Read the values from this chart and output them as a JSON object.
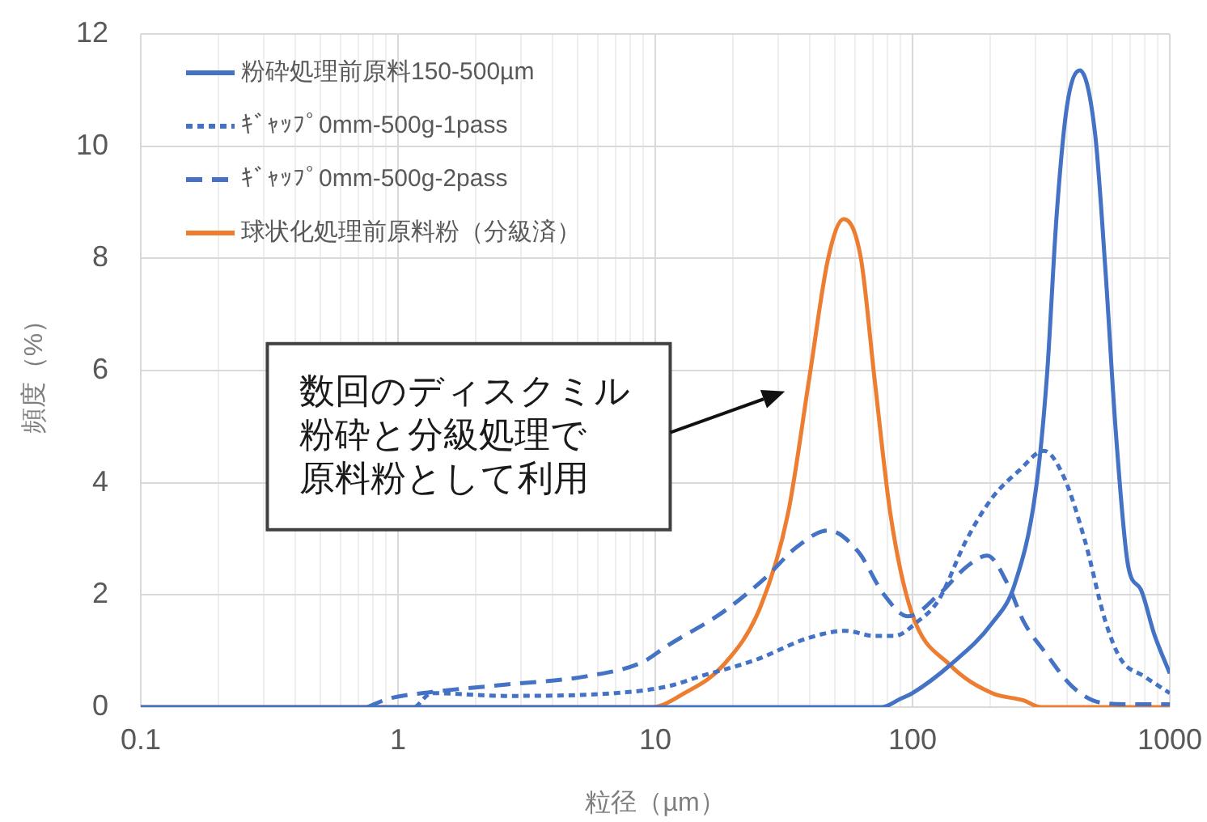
{
  "chart_data": {
    "type": "line",
    "xlabel": "粒径（µm）",
    "ylabel": "頻度（%）",
    "log": "x",
    "grid": true,
    "legend": "top left",
    "marker": "none",
    "xlim": [
      0.1,
      1000
    ],
    "xticks": [
      0.1,
      {
        "value": 0.2,
        "label": null
      },
      {
        "value": 0.3,
        "label": null
      },
      {
        "value": 0.4,
        "label": null
      },
      {
        "value": 0.5,
        "label": null
      },
      {
        "value": 0.6,
        "label": null
      },
      {
        "value": 0.7,
        "label": null
      },
      {
        "value": 0.8,
        "label": null
      },
      {
        "value": 0.9,
        "label": null
      },
      1,
      {
        "value": 2,
        "label": null
      },
      {
        "value": 3,
        "label": null
      },
      {
        "value": 4,
        "label": null
      },
      {
        "value": 5,
        "label": null
      },
      {
        "value": 6,
        "label": null
      },
      {
        "value": 7,
        "label": null
      },
      {
        "value": 8,
        "label": null
      },
      {
        "value": 9,
        "label": null
      },
      10,
      {
        "value": 20,
        "label": null
      },
      {
        "value": 30,
        "label": null
      },
      {
        "value": 40,
        "label": null
      },
      {
        "value": 50,
        "label": null
      },
      {
        "value": 60,
        "label": null
      },
      {
        "value": 70,
        "label": null
      },
      {
        "value": 80,
        "label": null
      },
      {
        "value": 90,
        "label": null
      },
      100,
      {
        "value": 200,
        "label": null
      },
      {
        "value": 300,
        "label": null
      },
      {
        "value": 400,
        "label": null
      },
      {
        "value": 500,
        "label": null
      },
      {
        "value": 600,
        "label": null
      },
      {
        "value": 700,
        "label": null
      },
      {
        "value": 800,
        "label": null
      },
      {
        "value": 900,
        "label": null
      },
      1000
    ],
    "ylim": [
      0,
      12
    ],
    "yticks": [
      0,
      2,
      4,
      6,
      8,
      10,
      12
    ],
    "series": [
      {
        "name": "粉砕処理前原料150-500µm",
        "color": "#4472c4",
        "line_style": "solid",
        "x": [
          0.1,
          76,
          90,
          100,
          140,
          204,
          250,
          302,
          333,
          363,
          398,
          447,
          513,
          562,
          617,
          690,
          771,
          870,
          1000
        ],
        "values": [
          0,
          0,
          0.15,
          0.25,
          0.75,
          1.5,
          2.2,
          3.9,
          5.9,
          8.75,
          10.7,
          11.35,
          10.2,
          7.8,
          4.9,
          2.5,
          2.1,
          1.3,
          0.6
        ]
      },
      {
        "name": "ｷﾞｬｯﾌﾟ0mm-500g-1pass",
        "color": "#4472c4",
        "line_style": "dotted",
        "x": [
          1.17,
          1.36,
          2.6,
          7,
          11.2,
          15,
          24.5,
          39.8,
          55,
          71,
          85,
          105,
          126,
          162,
          204,
          260,
          324,
          385,
          467,
          562,
          646,
          794,
          1000
        ],
        "values": [
          0,
          0.25,
          0.2,
          0.25,
          0.37,
          0.55,
          0.84,
          1.24,
          1.36,
          1.27,
          1.27,
          1.53,
          1.9,
          2.98,
          3.73,
          4.22,
          4.57,
          4.13,
          2.98,
          1.53,
          0.85,
          0.55,
          0.25
        ]
      },
      {
        "name": "ｷﾞｬｯﾌﾟ0mm-500g-2pass",
        "color": "#4472c4",
        "line_style": "dashed",
        "x": [
          0.76,
          0.92,
          1.36,
          2.6,
          5.4,
          8.9,
          11.2,
          18.4,
          26.7,
          35.6,
          47,
          61.5,
          77.6,
          96,
          126,
          162,
          195,
          234,
          270,
          331,
          417,
          537,
          700,
          1000
        ],
        "values": [
          0,
          0.15,
          0.27,
          0.4,
          0.55,
          0.8,
          1.1,
          1.7,
          2.3,
          2.86,
          3.15,
          2.77,
          2.0,
          1.62,
          2.0,
          2.5,
          2.7,
          2.2,
          1.53,
          0.95,
          0.37,
          0.08,
          0.05,
          0.05
        ]
      },
      {
        "name": "球状化処理前原料粉（分級済）",
        "color": "#ed7d31",
        "line_style": "solid",
        "x": [
          0.1,
          9.7,
          13,
          18.4,
          25.7,
          32.8,
          39.8,
          47,
          54,
          63,
          71,
          82,
          99,
          140,
          204,
          270,
          316,
          1000
        ],
        "values": [
          0,
          0,
          0.25,
          0.75,
          1.8,
          3.45,
          5.9,
          8.0,
          8.7,
          8.0,
          5.9,
          3.45,
          1.7,
          0.75,
          0.25,
          0.12,
          0,
          0
        ]
      }
    ],
    "annotations": [
      "数回のディスクミル粉砕と分級処理で原料粉として利用"
    ]
  }
}
